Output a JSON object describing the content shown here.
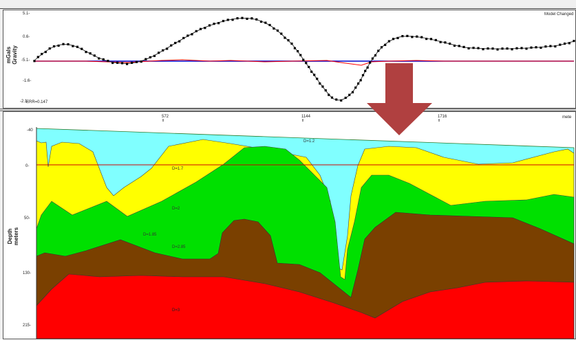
{
  "top_plot": {
    "y_axis_title_line1": "mGals",
    "y_axis_title_line2": "Gravity",
    "y_ticks": [
      "5.1-",
      "0.6-",
      "-5.1-",
      "-1.6-",
      "-2.1-"
    ],
    "error_label": "ERR=0.147",
    "status_badge": "Model Changed"
  },
  "x_axis": {
    "ticks": [
      "572",
      "1144",
      "1716"
    ],
    "unit": "mete"
  },
  "bottom_plot": {
    "y_axis_title_line1": "Depth",
    "y_axis_title_line2": "meters",
    "y_ticks": [
      "-40",
      "0-",
      "50-",
      "130-",
      "215-"
    ],
    "layer_labels": [
      "D=1.2",
      "D=1.7",
      "D=2",
      "D=1.85",
      "D=2.85",
      "D=3"
    ]
  },
  "colors": {
    "layer_top": "#80ffff",
    "layer_yellow": "#ffff00",
    "layer_green": "#00e000",
    "layer_brown": "#7a4000",
    "layer_red": "#ff0000",
    "observed_points": "#000000",
    "calculated_curve": "#333333",
    "error_curve": "#ff0000",
    "baseline": "#0000cc",
    "annotation_arrow": "#b04040"
  },
  "annotation": {
    "arrow_icon": "arrow-down-icon"
  }
}
